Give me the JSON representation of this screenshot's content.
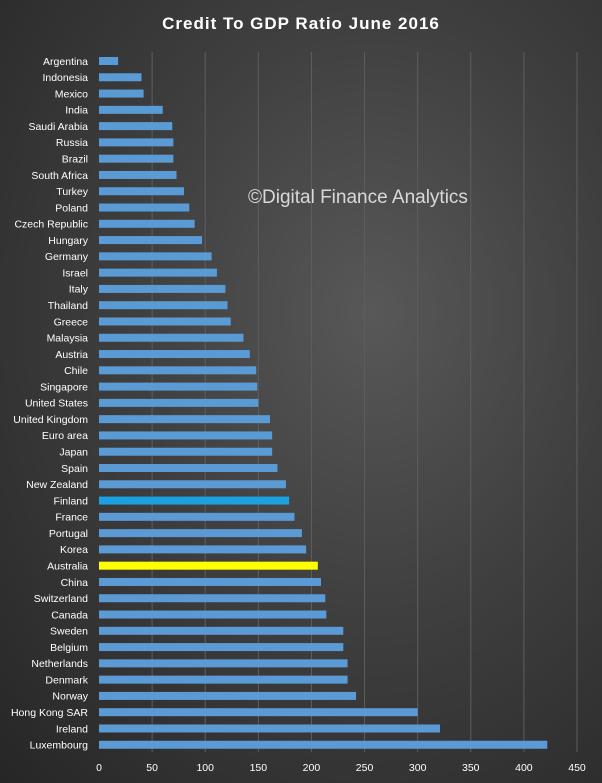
{
  "chart_data": {
    "type": "bar",
    "orientation": "horizontal",
    "title": "Credit To GDP Ratio June 2016",
    "watermark": "©Digital Finance Analytics",
    "categories": [
      "Argentina",
      "Indonesia",
      "Mexico",
      "India",
      "Saudi Arabia",
      "Russia",
      "Brazil",
      "South Africa",
      "Turkey",
      "Poland",
      "Czech Republic",
      "Hungary",
      "Germany",
      "Israel",
      "Italy",
      "Thailand",
      "Greece",
      "Malaysia",
      "Austria",
      "Chile",
      "Singapore",
      "United States",
      "United Kingdom",
      "Euro area",
      "Japan",
      "Spain",
      "New Zealand",
      "Finland",
      "France",
      "Portugal",
      "Korea",
      "Australia",
      "China",
      "Switzerland",
      "Canada",
      "Sweden",
      "Belgium",
      "Netherlands",
      "Denmark",
      "Norway",
      "Hong Kong SAR",
      "Ireland",
      "Luxembourg"
    ],
    "values": [
      18,
      40,
      42,
      60,
      69,
      70,
      70,
      73,
      80,
      85,
      90,
      97,
      106,
      111,
      119,
      121,
      124,
      136,
      142,
      148,
      149,
      150,
      161,
      163,
      163,
      168,
      176,
      179,
      184,
      191,
      195,
      206,
      209,
      213,
      214,
      230,
      230,
      234,
      234,
      242,
      300,
      321,
      422
    ],
    "colors": {
      "default": "#5b9bd5",
      "Finland": "#1ba1e2",
      "Australia": "#ffff00"
    },
    "xlim": [
      0,
      450
    ],
    "xticks": [
      0,
      50,
      100,
      150,
      200,
      250,
      300,
      350,
      400,
      450
    ],
    "grid": true,
    "legend": "none"
  }
}
